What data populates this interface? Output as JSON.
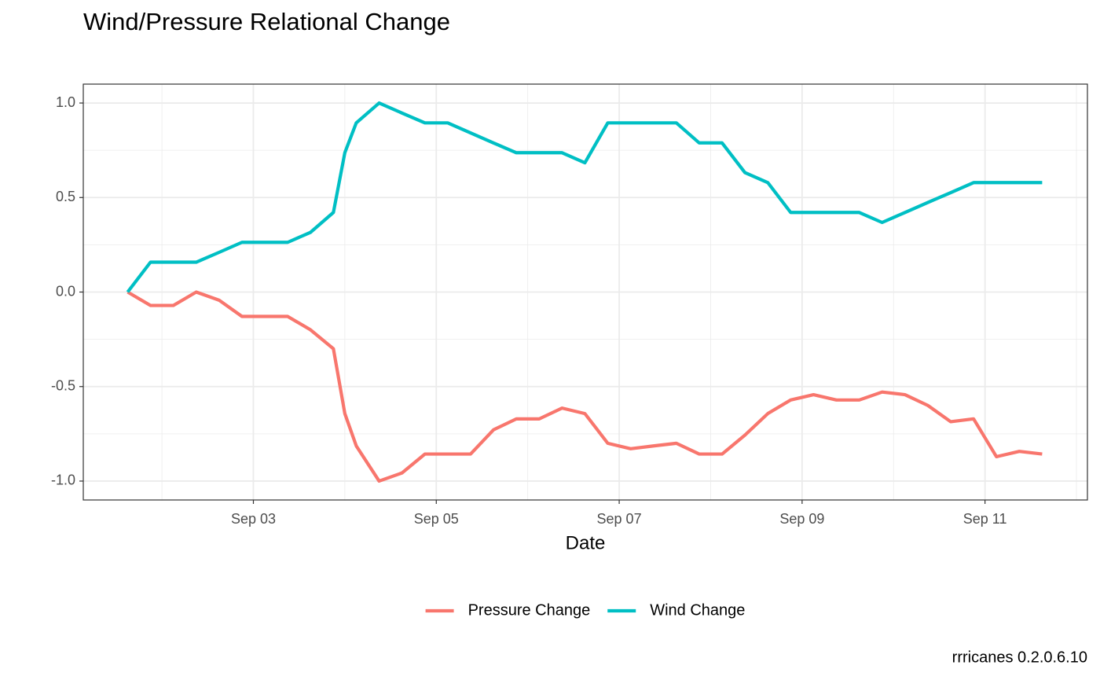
{
  "chart_data": {
    "type": "line",
    "title": "Wind/Pressure Relational Change",
    "x_label": "Date",
    "caption": "rrricanes 0.2.0.6.10",
    "x": [
      1.625,
      1.875,
      2.125,
      2.375,
      2.625,
      2.875,
      3.125,
      3.375,
      3.625,
      3.875,
      4.0,
      4.125,
      4.375,
      4.625,
      4.875,
      5.125,
      5.375,
      5.625,
      5.875,
      6.125,
      6.375,
      6.625,
      6.875,
      7.125,
      7.375,
      7.625,
      7.875,
      8.125,
      8.375,
      8.625,
      8.875,
      9.125,
      9.375,
      9.625,
      9.875,
      10.125,
      10.375,
      10.625,
      10.875,
      11.125,
      11.375,
      11.625
    ],
    "series": [
      {
        "name": "Pressure Change",
        "color": "#F8766D",
        "values": [
          0,
          -0.071,
          -0.071,
          0,
          -0.043,
          -0.129,
          -0.129,
          -0.129,
          -0.2,
          -0.3,
          -0.643,
          -0.814,
          -1.0,
          -0.957,
          -0.857,
          -0.857,
          -0.857,
          -0.729,
          -0.671,
          -0.671,
          -0.614,
          -0.643,
          -0.8,
          -0.829,
          -0.814,
          -0.8,
          -0.857,
          -0.857,
          -0.757,
          -0.643,
          -0.571,
          -0.543,
          -0.571,
          -0.571,
          -0.529,
          -0.543,
          -0.6,
          -0.686,
          -0.671,
          -0.871,
          -0.843,
          -0.857
        ]
      },
      {
        "name": "Wind Change",
        "color": "#00BFC4",
        "values": [
          0,
          0.158,
          0.158,
          0.158,
          0.21,
          0.263,
          0.263,
          0.263,
          0.316,
          0.421,
          0.737,
          0.895,
          1.0,
          0.947,
          0.895,
          0.895,
          0.842,
          0.789,
          0.737,
          0.737,
          0.737,
          0.684,
          0.895,
          0.895,
          0.895,
          0.895,
          0.789,
          0.789,
          0.632,
          0.579,
          0.421,
          0.421,
          0.421,
          0.421,
          0.368,
          0.421,
          0.474,
          0.526,
          0.579,
          0.579,
          0.579,
          0.579
        ]
      }
    ],
    "xlim": [
      1.14,
      12.12
    ],
    "ylim": [
      -1.1,
      1.1
    ],
    "xticks": [
      {
        "value": 3,
        "label": "Sep 03"
      },
      {
        "value": 5,
        "label": "Sep 05"
      },
      {
        "value": 7,
        "label": "Sep 07"
      },
      {
        "value": 9,
        "label": "Sep 09"
      },
      {
        "value": 11,
        "label": "Sep 11"
      }
    ],
    "yticks": [
      {
        "value": -1.0,
        "label": "-1.0"
      },
      -0.5,
      {
        "value": 0,
        "label": "0.0"
      },
      0.5,
      {
        "value": 1.0,
        "label": "1.0"
      }
    ],
    "grid": true,
    "legend": "bottom"
  }
}
